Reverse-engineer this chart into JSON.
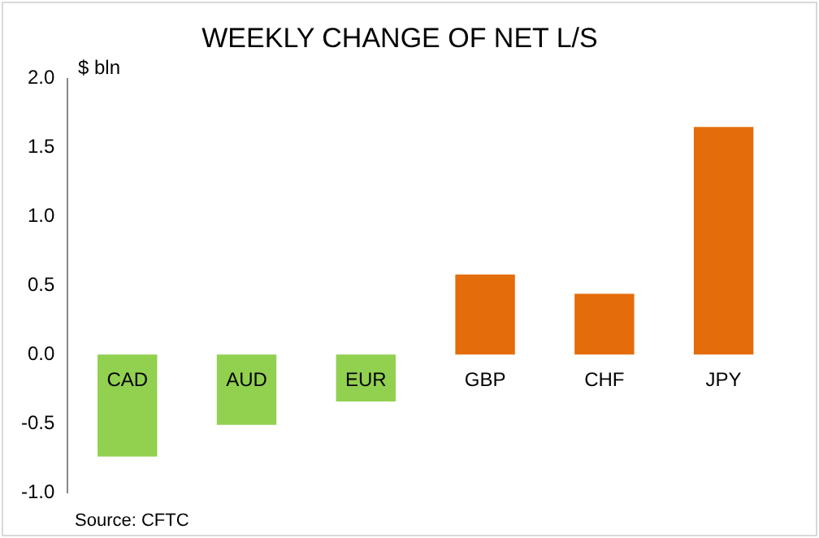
{
  "chart_data": {
    "type": "bar",
    "title": "WEEKLY CHANGE OF NET L/S",
    "ylabel": "$ bln",
    "categories": [
      "CAD",
      "AUD",
      "EUR",
      "GBP",
      "CHF",
      "JPY"
    ],
    "values": [
      -0.74,
      -0.51,
      -0.34,
      0.58,
      0.44,
      1.65
    ],
    "colors": [
      "#92d050",
      "#92d050",
      "#92d050",
      "#e46c0a",
      "#e46c0a",
      "#e46c0a"
    ],
    "ylim": [
      -1.0,
      2.0
    ],
    "yticks": [
      {
        "value": -1,
        "label": "-1.0"
      },
      {
        "value": -0.5,
        "label": "-0.5"
      },
      {
        "value": 0,
        "label": "0.0"
      },
      {
        "value": 0.5,
        "label": "0.5"
      },
      {
        "value": 1,
        "label": "1.0"
      },
      {
        "value": 1.5,
        "label": "1.5"
      },
      {
        "value": 2,
        "label": "2.0"
      }
    ],
    "grid": false,
    "legend": false,
    "annotations": [
      "Source: CFTC"
    ]
  }
}
